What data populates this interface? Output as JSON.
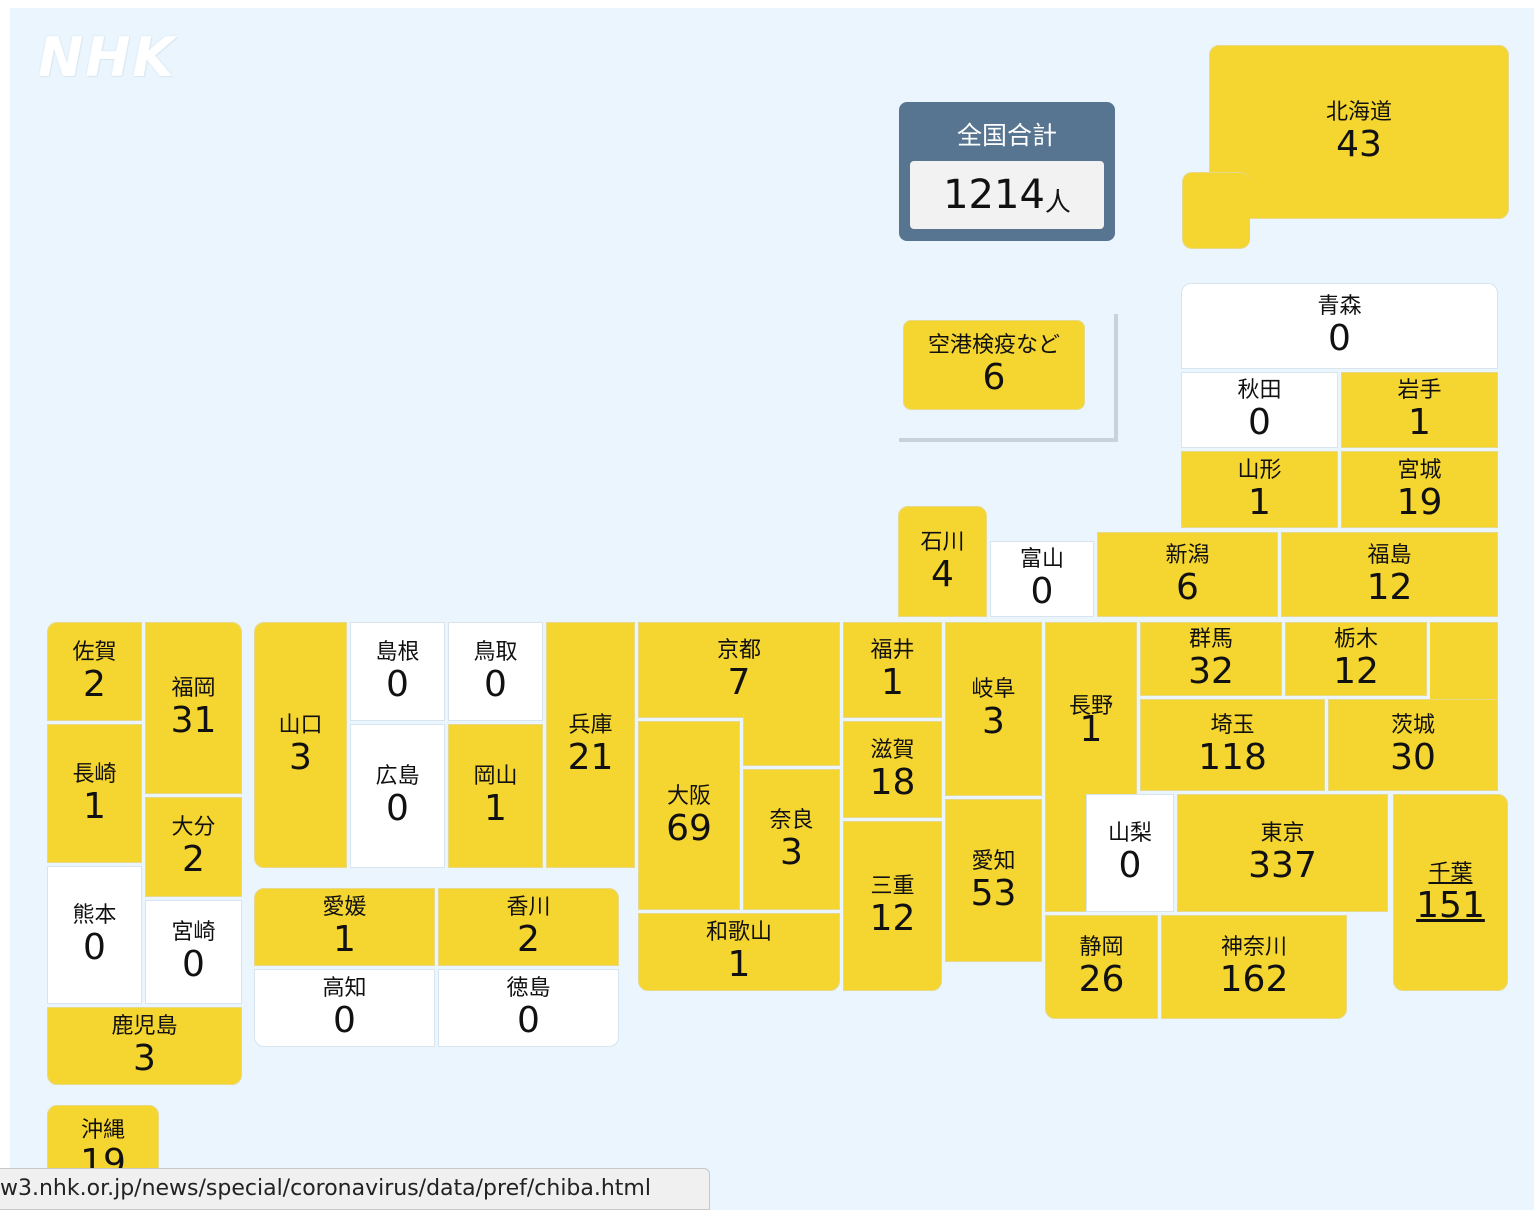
{
  "logo": "NHK",
  "total": {
    "label": "全国合計",
    "value": "1214",
    "unit": "人"
  },
  "airport": {
    "name": "空港検疫など",
    "count": "6"
  },
  "prefectures": {
    "hokkaido": {
      "name": "北海道",
      "count": "43"
    },
    "aomori": {
      "name": "青森",
      "count": "0"
    },
    "akita": {
      "name": "秋田",
      "count": "0"
    },
    "iwate": {
      "name": "岩手",
      "count": "1"
    },
    "yamagata": {
      "name": "山形",
      "count": "1"
    },
    "miyagi": {
      "name": "宮城",
      "count": "19"
    },
    "ishikawa": {
      "name": "石川",
      "count": "4"
    },
    "toyama": {
      "name": "富山",
      "count": "0"
    },
    "niigata": {
      "name": "新潟",
      "count": "6"
    },
    "fukushima": {
      "name": "福島",
      "count": "12"
    },
    "saga": {
      "name": "佐賀",
      "count": "2"
    },
    "fukuoka": {
      "name": "福岡",
      "count": "31"
    },
    "yamaguchi": {
      "name": "山口",
      "count": "3"
    },
    "shimane": {
      "name": "島根",
      "count": "0"
    },
    "tottori": {
      "name": "鳥取",
      "count": "0"
    },
    "hyogo": {
      "name": "兵庫",
      "count": "21"
    },
    "kyoto": {
      "name": "京都",
      "count": "7"
    },
    "fukui": {
      "name": "福井",
      "count": "1"
    },
    "gifu": {
      "name": "岐阜",
      "count": "3"
    },
    "nagano": {
      "name": "長野",
      "count": "1"
    },
    "gunma": {
      "name": "群馬",
      "count": "32"
    },
    "tochigi": {
      "name": "栃木",
      "count": "12"
    },
    "nagasaki": {
      "name": "長崎",
      "count": "1"
    },
    "oita": {
      "name": "大分",
      "count": "2"
    },
    "hiroshima": {
      "name": "広島",
      "count": "0"
    },
    "okayama": {
      "name": "岡山",
      "count": "1"
    },
    "osaka": {
      "name": "大阪",
      "count": "69"
    },
    "nara": {
      "name": "奈良",
      "count": "3"
    },
    "shiga": {
      "name": "滋賀",
      "count": "18"
    },
    "saitama": {
      "name": "埼玉",
      "count": "118"
    },
    "ibaraki": {
      "name": "茨城",
      "count": "30"
    },
    "kumamoto": {
      "name": "熊本",
      "count": "0"
    },
    "miyazaki": {
      "name": "宮崎",
      "count": "0"
    },
    "ehime": {
      "name": "愛媛",
      "count": "1"
    },
    "kagawa": {
      "name": "香川",
      "count": "2"
    },
    "mie": {
      "name": "三重",
      "count": "12"
    },
    "aichi": {
      "name": "愛知",
      "count": "53"
    },
    "yamanashi": {
      "name": "山梨",
      "count": "0"
    },
    "tokyo": {
      "name": "東京",
      "count": "337"
    },
    "chiba": {
      "name": "千葉",
      "count": "151"
    },
    "wakayama": {
      "name": "和歌山",
      "count": "1"
    },
    "kochi": {
      "name": "高知",
      "count": "0"
    },
    "tokushima": {
      "name": "徳島",
      "count": "0"
    },
    "shizuoka": {
      "name": "静岡",
      "count": "26"
    },
    "kanagawa": {
      "name": "神奈川",
      "count": "162"
    },
    "kagoshima": {
      "name": "鹿児島",
      "count": "3"
    },
    "okinawa": {
      "name": "沖縄",
      "count": "19"
    }
  },
  "status_bar": {
    "url": "w3.nhk.or.jp/news/special/coronavirus/data/pref/chiba.html"
  },
  "colors": {
    "infected": "#f5d530",
    "zero": "#ffffff",
    "background": "#eaf5fd",
    "total_panel": "#577590"
  }
}
